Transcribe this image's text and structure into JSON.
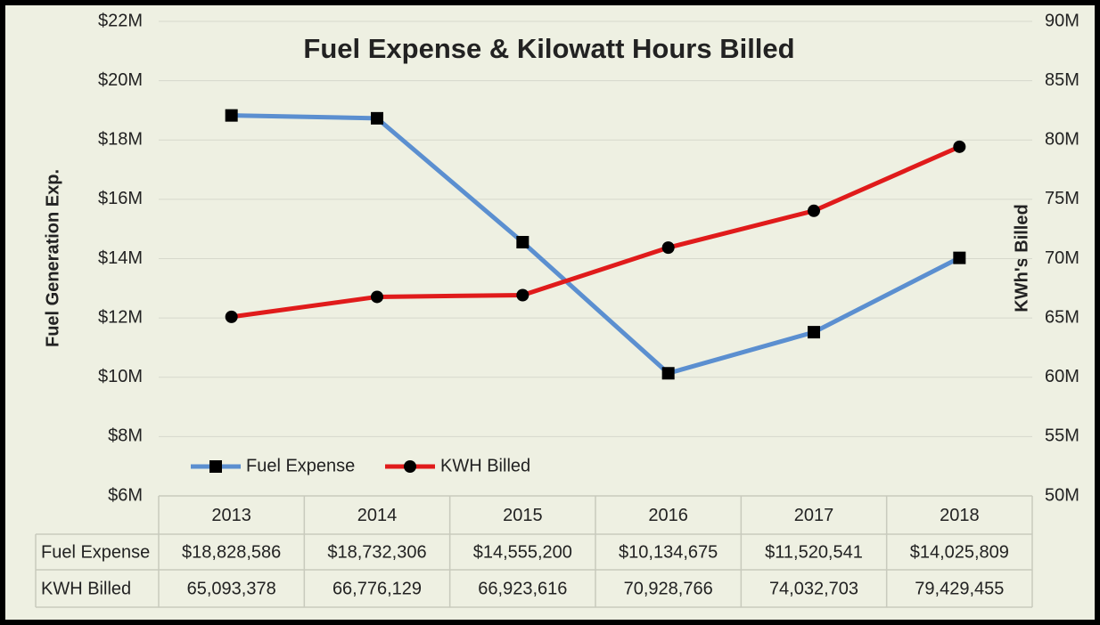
{
  "chart_data": {
    "type": "line",
    "title": "Fuel Expense & Kilowatt Hours Billed",
    "ylabel": "Fuel Generation Exp.",
    "y2label": "KWh's Billed",
    "categories": [
      "2013",
      "2014",
      "2015",
      "2016",
      "2017",
      "2018"
    ],
    "series": [
      {
        "name": "Fuel Expense",
        "color": "#5b8fd0",
        "marker": "square",
        "values": [
          18828586,
          18732306,
          14555200,
          10134675,
          11520541,
          14025809
        ],
        "value_labels": [
          "$18,828,586",
          "$18,732,306",
          "$14,555,200",
          "$10,134,675",
          "$11,520,541",
          "$14,025,809"
        ]
      },
      {
        "name": "KWH Billed",
        "color": "#e01b1b",
        "marker": "circle",
        "axis": "y2",
        "values": [
          65093378,
          66776129,
          66923616,
          70928766,
          74032703,
          79429455
        ],
        "value_labels": [
          "65,093,378",
          "66,776,129",
          "66,923,616",
          "70,928,766",
          "74,032,703",
          "79,429,455"
        ]
      }
    ],
    "ylim": [
      6000000,
      22000000
    ],
    "yticks": [
      {
        "value": 6000000,
        "label": "$6M"
      },
      {
        "value": 8000000,
        "label": "$8M"
      },
      {
        "value": 10000000,
        "label": "$10M"
      },
      {
        "value": 12000000,
        "label": "$12M"
      },
      {
        "value": 14000000,
        "label": "$14M"
      },
      {
        "value": 16000000,
        "label": "$16M"
      },
      {
        "value": 18000000,
        "label": "$18M"
      },
      {
        "value": 20000000,
        "label": "$20M"
      },
      {
        "value": 22000000,
        "label": "$22M"
      }
    ],
    "y2lim": [
      50000000,
      90000000
    ],
    "y2ticks": [
      {
        "value": 50000000,
        "label": "50M"
      },
      {
        "value": 55000000,
        "label": "55M"
      },
      {
        "value": 60000000,
        "label": "60M"
      },
      {
        "value": 65000000,
        "label": "65M"
      },
      {
        "value": 70000000,
        "label": "70M"
      },
      {
        "value": 75000000,
        "label": "75M"
      },
      {
        "value": 80000000,
        "label": "80M"
      },
      {
        "value": 85000000,
        "label": "85M"
      },
      {
        "value": 90000000,
        "label": "90M"
      }
    ],
    "grid": true,
    "legend": "bottom-left"
  }
}
